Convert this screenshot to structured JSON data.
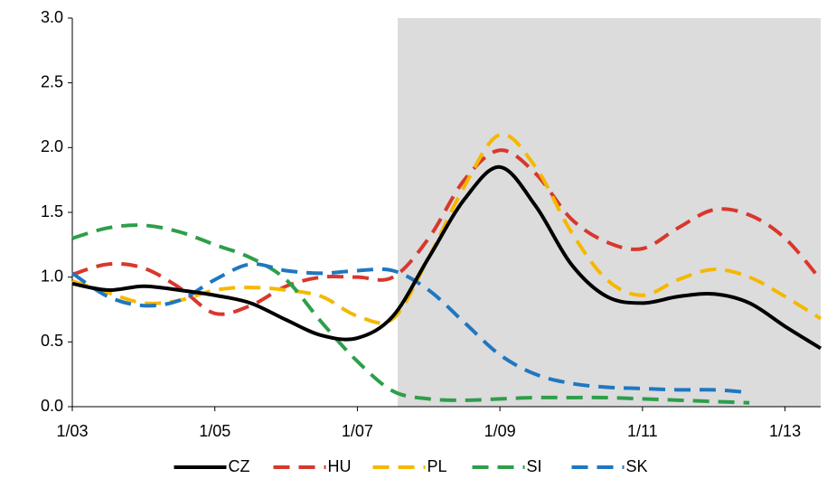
{
  "chart_data": {
    "type": "line",
    "categories": [
      "1/03",
      null,
      null,
      null,
      "1/05",
      null,
      null,
      null,
      "1/07",
      null,
      null,
      null,
      "1/09",
      null,
      null,
      null,
      "1/11",
      null,
      null,
      null,
      "1/13",
      null
    ],
    "series": [
      {
        "name": "CZ",
        "color": "#000000",
        "dashed": false,
        "values": [
          0.95,
          0.9,
          0.93,
          0.9,
          0.86,
          0.8,
          0.67,
          0.55,
          0.53,
          0.7,
          1.15,
          1.6,
          1.85,
          1.55,
          1.1,
          0.85,
          0.8,
          0.85,
          0.87,
          0.8,
          0.62,
          0.45
        ]
      },
      {
        "name": "HU",
        "color": "#d9372c",
        "dashed": true,
        "values": [
          1.02,
          1.1,
          1.07,
          0.92,
          0.72,
          0.78,
          0.93,
          1.0,
          1.0,
          1.0,
          1.3,
          1.75,
          1.98,
          1.8,
          1.45,
          1.27,
          1.22,
          1.38,
          1.52,
          1.48,
          1.3,
          0.98
        ]
      },
      {
        "name": "PL",
        "color": "#f5b800",
        "dashed": true,
        "values": [
          0.97,
          0.88,
          0.8,
          0.82,
          0.9,
          0.92,
          0.9,
          0.85,
          0.7,
          0.68,
          1.15,
          1.7,
          2.1,
          1.85,
          1.35,
          0.98,
          0.86,
          0.98,
          1.06,
          1.0,
          0.85,
          0.68
        ]
      },
      {
        "name": "SI",
        "color": "#2e9e4a",
        "dashed": true,
        "values": [
          1.3,
          1.38,
          1.4,
          1.35,
          1.25,
          1.15,
          0.98,
          0.65,
          0.35,
          0.12,
          0.06,
          0.05,
          0.06,
          0.07,
          0.07,
          0.07,
          0.06,
          0.05,
          0.04,
          0.03,
          null,
          null
        ]
      },
      {
        "name": "SK",
        "color": "#1f77c0",
        "dashed": true,
        "values": [
          1.03,
          0.85,
          0.78,
          0.82,
          0.98,
          1.1,
          1.05,
          1.03,
          1.05,
          1.05,
          0.9,
          0.65,
          0.4,
          0.25,
          0.18,
          0.15,
          0.14,
          0.13,
          0.13,
          0.11,
          null,
          null
        ]
      }
    ],
    "ylim": [
      0,
      3
    ],
    "yticks": [
      {
        "value": 0,
        "label": "0.0"
      },
      0.5,
      {
        "value": 1,
        "label": "1.0"
      },
      1.5,
      {
        "value": 2,
        "label": "2.0"
      },
      2.5,
      {
        "value": 3,
        "label": "3.0"
      }
    ],
    "legend": "bottom"
  }
}
